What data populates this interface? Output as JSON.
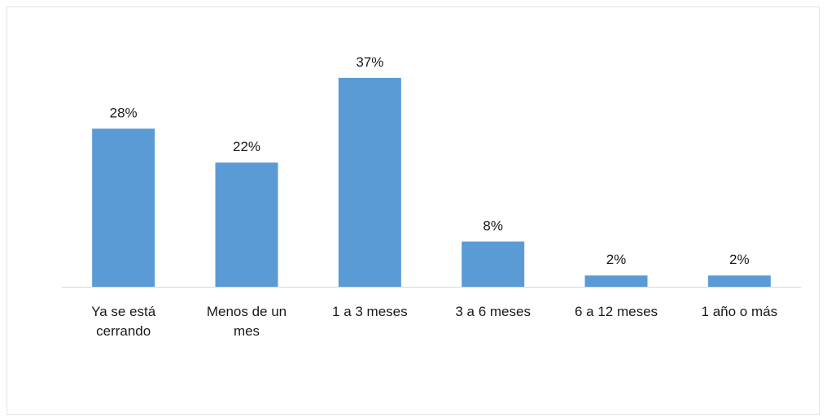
{
  "chart_data": {
    "type": "bar",
    "categories": [
      [
        "Ya se está",
        "cerrando"
      ],
      [
        "Menos de un",
        "mes"
      ],
      [
        "1 a 3 meses"
      ],
      [
        "3 a 6 meses"
      ],
      [
        "6 a 12 meses"
      ],
      [
        "1 año o más"
      ]
    ],
    "values": [
      28,
      22,
      37,
      8,
      2,
      2
    ],
    "data_labels": [
      "28%",
      "22%",
      "37%",
      "8%",
      "2%",
      "2%"
    ],
    "unit": "%",
    "title": "",
    "xlabel": "",
    "ylabel": "",
    "ylim": [
      0,
      40
    ],
    "grid": false,
    "legend": "none",
    "bar_color": "#5b9bd5",
    "axis_color": "#d9d9d9",
    "text_color": "#1a1a1a"
  }
}
